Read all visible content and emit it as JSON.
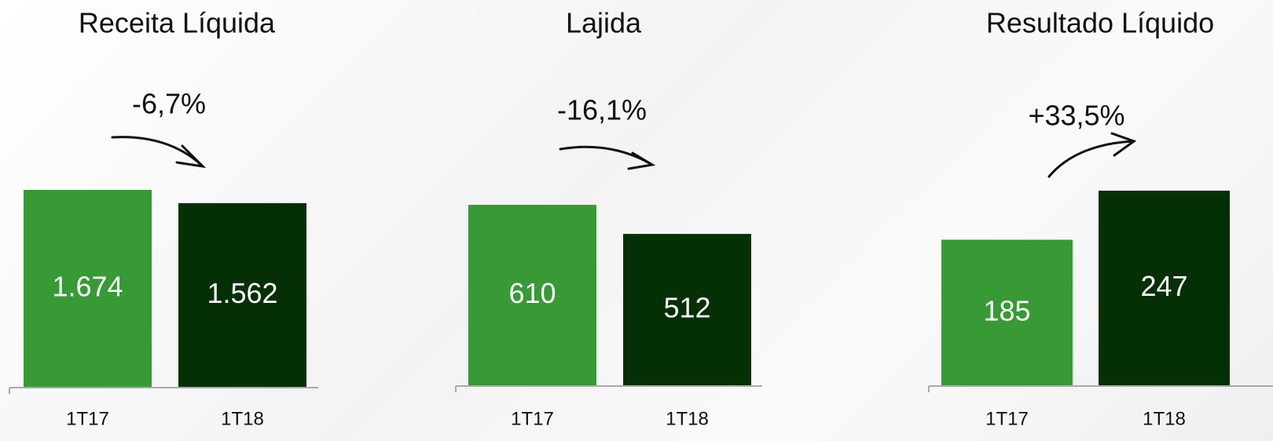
{
  "chart_data": [
    {
      "type": "bar",
      "title": "Receita Líquida",
      "annotation": "-6,7%",
      "categories": [
        "1T17",
        "1T18"
      ],
      "values": [
        1674,
        1562
      ],
      "value_labels": [
        "1.674",
        "1.562"
      ],
      "colors": [
        "#379a35",
        "#053005"
      ]
    },
    {
      "type": "bar",
      "title": "Lajida",
      "annotation": "-16,1%",
      "categories": [
        "1T17",
        "1T18"
      ],
      "values": [
        610,
        512
      ],
      "colors": [
        "#379a35",
        "#053005"
      ]
    },
    {
      "type": "bar",
      "title": "Resultado Líquido",
      "annotation": "+33,5%",
      "categories": [
        "1T17",
        "1T18"
      ],
      "values": [
        185,
        247
      ],
      "colors": [
        "#379a35",
        "#053005"
      ]
    }
  ]
}
